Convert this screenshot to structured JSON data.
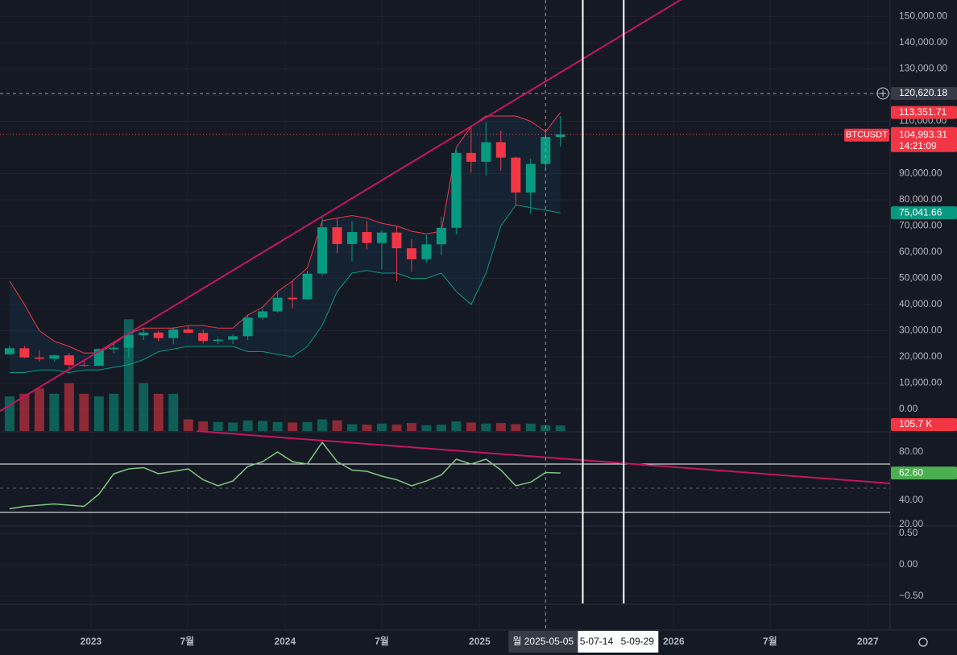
{
  "chart_data": [
    {
      "type": "candlestick",
      "symbol": "BTCUSDT",
      "x": [
        "2022-07-18",
        "2022-08-15",
        "2022-09-12",
        "2022-10-10",
        "2022-11-07",
        "2022-12-05",
        "2023-01-02",
        "2023-01-30",
        "2023-02-27",
        "2023-03-27",
        "2023-04-24",
        "2023-05-22",
        "2023-06-19",
        "2023-07-17",
        "2023-08-14",
        "2023-09-11",
        "2023-10-09",
        "2023-11-06",
        "2023-12-04",
        "2024-01-01",
        "2024-01-29",
        "2024-02-26",
        "2024-03-25",
        "2024-04-22",
        "2024-05-20",
        "2024-06-17",
        "2024-07-15",
        "2024-08-12",
        "2024-09-09",
        "2024-10-07",
        "2024-11-04",
        "2024-12-02",
        "2024-12-30",
        "2025-01-27",
        "2025-02-24",
        "2025-03-24",
        "2025-04-21",
        "2025-05-19"
      ],
      "open": [
        21000,
        23300,
        19800,
        19300,
        20600,
        16900,
        16600,
        23000,
        23500,
        28300,
        29300,
        27200,
        30500,
        29200,
        26100,
        26600,
        27900,
        35000,
        37400,
        42600,
        42000,
        51800,
        69500,
        63100,
        67700,
        63500,
        67500,
        61500,
        57300,
        63000,
        69300,
        97900,
        94500,
        102000,
        96100,
        82800,
        93700,
        104000
      ],
      "high": [
        24400,
        24200,
        22700,
        21000,
        21500,
        18400,
        23400,
        25200,
        28900,
        31000,
        30000,
        31400,
        31800,
        30300,
        27500,
        28600,
        35900,
        38400,
        44700,
        48900,
        52900,
        73800,
        72800,
        71900,
        71900,
        68500,
        70000,
        65000,
        66500,
        73600,
        99500,
        108300,
        109600,
        106400,
        96500,
        95700,
        105800,
        111900
      ],
      "low": [
        20700,
        19500,
        18200,
        18200,
        15500,
        16300,
        16500,
        21400,
        19500,
        26500,
        26000,
        24800,
        29000,
        25100,
        24900,
        24900,
        26500,
        34100,
        37000,
        38500,
        41800,
        50900,
        59600,
        56500,
        61000,
        53500,
        49000,
        52500,
        56000,
        58900,
        66800,
        90500,
        89300,
        91200,
        78200,
        74500,
        91800,
        100400
      ],
      "close": [
        23300,
        19800,
        19300,
        20600,
        16900,
        16600,
        23000,
        23500,
        28300,
        29300,
        27200,
        30500,
        29200,
        26100,
        26600,
        27900,
        35000,
        37400,
        42600,
        42000,
        51800,
        69500,
        63100,
        67700,
        63500,
        67500,
        61500,
        57300,
        63000,
        69300,
        97900,
        94500,
        102000,
        96100,
        82800,
        93700,
        104000,
        104993.31
      ],
      "close_label": "104,993.31",
      "countdown": "14:21:09",
      "bands": {
        "upper": [
          49000,
          40000,
          30000,
          26000,
          24000,
          21500,
          21500,
          25000,
          29000,
          31000,
          31000,
          31000,
          32000,
          32000,
          31000,
          31000,
          36000,
          39000,
          45000,
          49000,
          54000,
          72000,
          73000,
          74000,
          73000,
          71000,
          70000,
          68000,
          67000,
          68000,
          100000,
          108000,
          112000,
          112000,
          112000,
          110000,
          106000,
          113351.71
        ],
        "lower": [
          14000,
          14000,
          15000,
          15000,
          14000,
          15000,
          15000,
          16000,
          17000,
          19000,
          22000,
          23000,
          24000,
          24000,
          24000,
          24000,
          22000,
          22000,
          21000,
          20000,
          24000,
          32000,
          45000,
          52000,
          53000,
          52000,
          52000,
          50000,
          50000,
          52000,
          45000,
          40000,
          52000,
          70000,
          78000,
          77000,
          76000,
          75041.66
        ],
        "upper_label": "113,351.71",
        "lower_label": "75,041.66",
        "upper_color": "#f23645",
        "lower_color": "#089981"
      },
      "colors": {
        "up": "#089981",
        "down": "#f23645"
      },
      "xlim": [
        "2022-07-14",
        "2027-02-12"
      ],
      "xticks": [
        {
          "value": "2023-01",
          "label": "2023"
        },
        {
          "value": "2023-07",
          "label": "7월"
        },
        {
          "value": "2024-01",
          "label": "2024"
        },
        {
          "value": "2024-07",
          "label": "7월"
        },
        {
          "value": "2025-01",
          "label": "2025"
        },
        {
          "value": "2026-01",
          "label": "2026"
        },
        {
          "value": "2026-07",
          "label": "7월"
        },
        {
          "value": "2027-01",
          "label": "2027"
        }
      ],
      "ylim": [
        -8300,
        156300
      ],
      "yticks": [
        {
          "value": 0,
          "label": "0.00"
        },
        {
          "value": 10000,
          "label": "10,000.00"
        },
        {
          "value": 20000,
          "label": "20,000.00"
        },
        {
          "value": 30000,
          "label": "30,000.00"
        },
        {
          "value": 40000,
          "label": "40,000.00"
        },
        {
          "value": 50000,
          "label": "50,000.00"
        },
        {
          "value": 60000,
          "label": "60,000.00"
        },
        {
          "value": 70000,
          "label": "70,000.00"
        },
        {
          "value": 80000,
          "label": "80,000.00"
        },
        {
          "value": 90000,
          "label": "90,000.00"
        },
        {
          "value": 110000,
          "label": "110,000.00"
        },
        {
          "value": 120000,
          "label": "120,000.00"
        },
        {
          "value": 130000,
          "label": "130,000.00"
        },
        {
          "value": 140000,
          "label": "140,000.00"
        },
        {
          "value": 150000,
          "label": "150,000.00"
        }
      ],
      "grid": true,
      "crosshair": {
        "date": "2025-05-05",
        "label": "월 2025-05-05",
        "price": 120620.18,
        "price_label": "120,620.18"
      },
      "vertical_lines": [
        {
          "date": "2025-07-14",
          "label": "5-07-14"
        },
        {
          "date": "2025-09-29",
          "label": "5-09-29"
        }
      ],
      "trendline": {
        "points": [
          [
            "2023-01-01",
            20300
          ],
          [
            "2025-01-01",
            110000
          ]
        ],
        "color": "#c2185b"
      }
    },
    {
      "type": "bar",
      "values": [
        650,
        700,
        800,
        700,
        900,
        700,
        650,
        700,
        2100,
        900,
        700,
        700,
        220,
        180,
        170,
        160,
        200,
        190,
        170,
        160,
        170,
        220,
        200,
        130,
        120,
        140,
        120,
        150,
        110,
        120,
        180,
        160,
        140,
        150,
        130,
        140,
        110,
        105.7
      ],
      "value_labels": [
        null,
        null,
        null,
        null,
        null,
        null,
        null,
        null,
        null,
        null,
        null,
        null,
        null,
        null,
        null,
        null,
        null,
        null,
        null,
        null,
        null,
        null,
        null,
        null,
        null,
        null,
        null,
        null,
        null,
        null,
        null,
        null,
        null,
        null,
        null,
        null,
        null,
        "105.7 K"
      ],
      "ylim": [
        0,
        8100
      ]
    },
    {
      "type": "line",
      "series": [
        {
          "name": "RSI",
          "color": "#81c784",
          "values": [
            33,
            35,
            36,
            37,
            36,
            35,
            45,
            62,
            66,
            67,
            62,
            64,
            66,
            57,
            52,
            56,
            68,
            72,
            80,
            72,
            70,
            88,
            72,
            65,
            64,
            60,
            57,
            52,
            56,
            61,
            74,
            70,
            74,
            65,
            52,
            55,
            63,
            62.6
          ],
          "value_labels": [
            null,
            null,
            null,
            null,
            null,
            null,
            null,
            null,
            null,
            null,
            null,
            null,
            null,
            null,
            null,
            null,
            null,
            null,
            null,
            null,
            null,
            null,
            null,
            null,
            null,
            null,
            null,
            null,
            null,
            null,
            null,
            null,
            null,
            null,
            null,
            null,
            null,
            "62.60"
          ]
        }
      ],
      "ylim": [
        19.3,
        96
      ],
      "yticks": [
        {
          "value": 20,
          "label": "20.00"
        },
        {
          "value": 40,
          "label": "40.00"
        },
        {
          "value": 80,
          "label": "80.00"
        }
      ],
      "levels": [
        {
          "value": 70,
          "color": "#ffffff"
        },
        {
          "value": 50,
          "color": "#555a66"
        },
        {
          "value": 30,
          "color": "#ffffff"
        }
      ],
      "trendline": {
        "points": [
          [
            "2023-07-19",
            97.3
          ],
          [
            "2027-02-12",
            54
          ]
        ],
        "color": "#c2185b"
      }
    },
    {
      "type": "line",
      "series": [],
      "ylim": [
        -0.615,
        0.603
      ],
      "yticks": [
        {
          "value": 0.5,
          "label": "0.50"
        },
        {
          "value": 0,
          "label": "0.00"
        },
        {
          "value": -0.5,
          "label": "−0.50"
        }
      ]
    }
  ]
}
